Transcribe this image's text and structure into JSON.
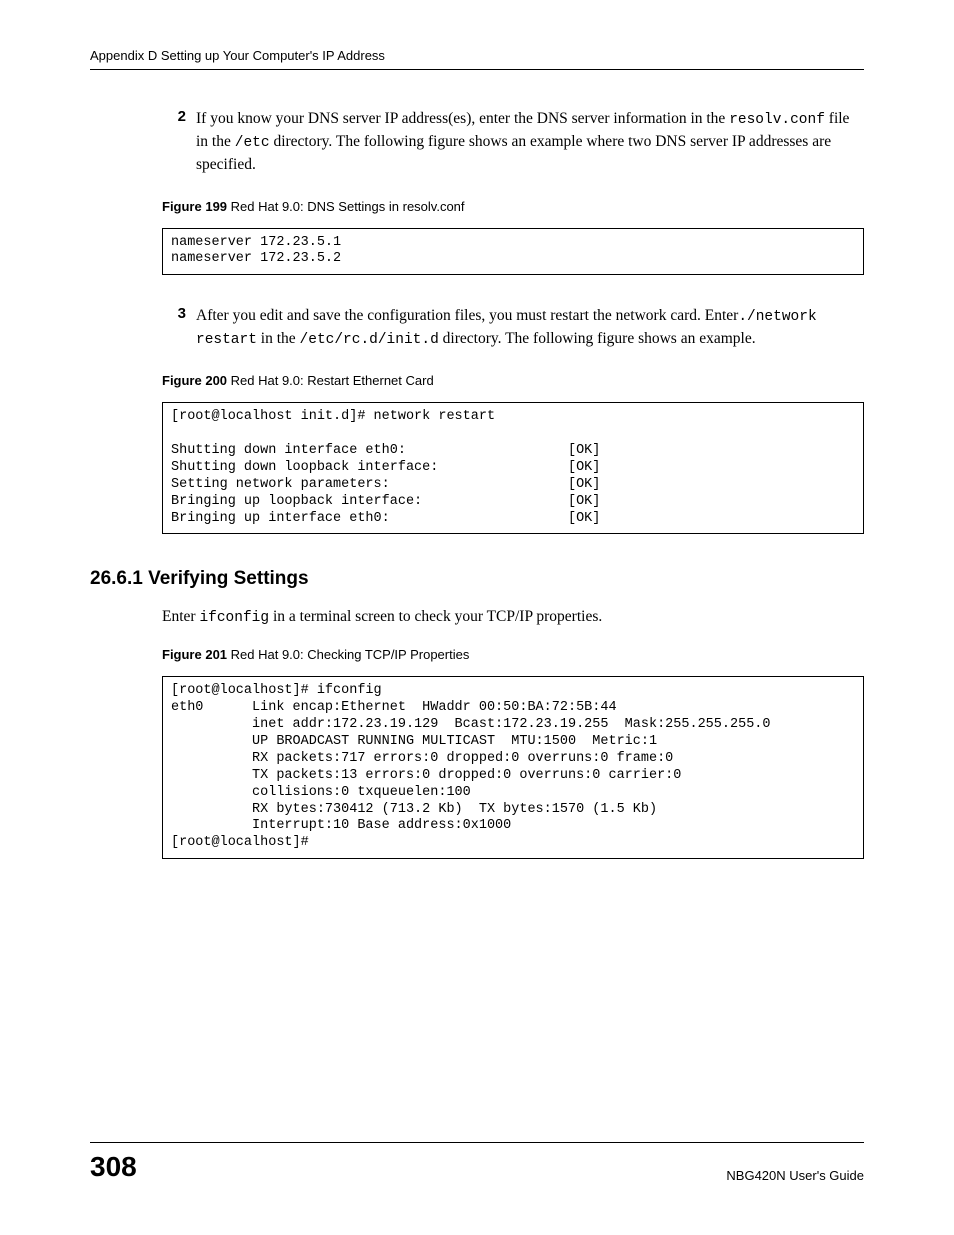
{
  "header": "Appendix D Setting up Your Computer's IP Address",
  "steps": {
    "s2": {
      "num": "2",
      "text_pre": "If you know your DNS server IP address(es), enter the DNS server information in the ",
      "code1": "resolv.conf",
      "text_mid1": " file in the ",
      "code2": "/etc",
      "text_post": " directory. The following figure shows an example where two DNS server IP addresses are specified."
    },
    "s3": {
      "num": "3",
      "text_pre": "After you edit and save the configuration files, you must restart the network card. Enter",
      "code1": "./network restart",
      "text_mid1": " in the ",
      "code2": "/etc/rc.d/init.d",
      "text_post": "  directory. The following figure shows an example."
    }
  },
  "figures": {
    "f199": {
      "label": "Figure 199",
      "title": "   Red Hat 9.0: DNS Settings in resolv.conf"
    },
    "f200": {
      "label": "Figure 200",
      "title": "   Red Hat 9.0: Restart Ethernet Card"
    },
    "f201": {
      "label": "Figure 201",
      "title": "   Red Hat 9.0: Checking TCP/IP Properties"
    }
  },
  "codeboxes": {
    "c199": "nameserver 172.23.5.1\nnameserver 172.23.5.2",
    "c200": "[root@localhost init.d]# network restart\n\nShutting down interface eth0:                    [OK]\nShutting down loopback interface:                [OK]\nSetting network parameters:                      [OK]\nBringing up loopback interface:                  [OK]\nBringing up interface eth0:                      [OK]",
    "c201": "[root@localhost]# ifconfig \neth0      Link encap:Ethernet  HWaddr 00:50:BA:72:5B:44  \n          inet addr:172.23.19.129  Bcast:172.23.19.255  Mask:255.255.255.0\n          UP BROADCAST RUNNING MULTICAST  MTU:1500  Metric:1\n          RX packets:717 errors:0 dropped:0 overruns:0 frame:0\n          TX packets:13 errors:0 dropped:0 overruns:0 carrier:0\n          collisions:0 txqueuelen:100 \n          RX bytes:730412 (713.2 Kb)  TX bytes:1570 (1.5 Kb)\n          Interrupt:10 Base address:0x1000 \n[root@localhost]#"
  },
  "section": {
    "heading": "26.6.1  Verifying Settings",
    "para_pre": "Enter ",
    "para_code": "ifconfig",
    "para_post": " in a terminal screen to check your TCP/IP properties. "
  },
  "footer": {
    "page": "308",
    "guide": "NBG420N User's Guide"
  }
}
